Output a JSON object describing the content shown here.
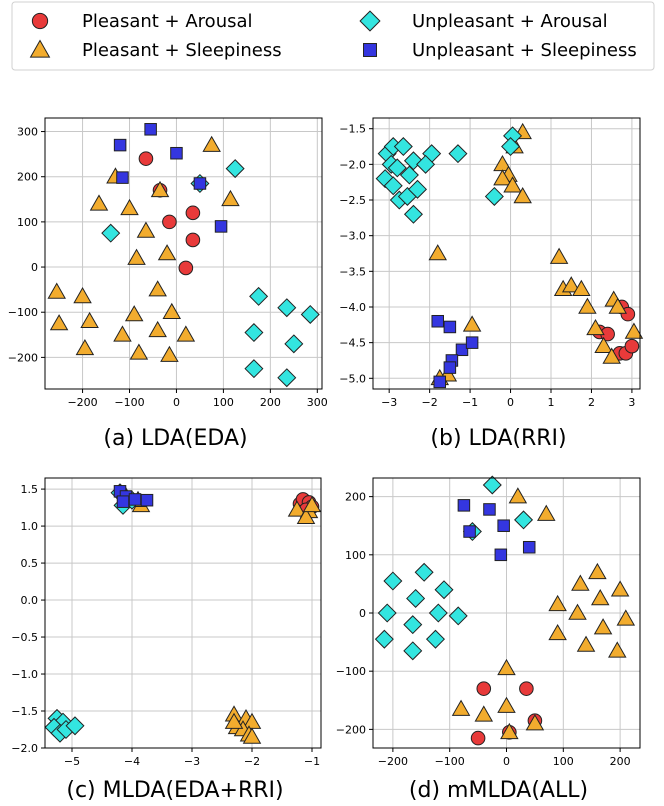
{
  "legend": {
    "entries": [
      {
        "label": "Pleasant + Arousal",
        "marker": "circle",
        "color": "#e83a3a"
      },
      {
        "label": "Unpleasant + Arousal",
        "marker": "diamond",
        "color": "#33e5e0"
      },
      {
        "label": "Pleasant + Sleepiness",
        "marker": "triangle",
        "color": "#f2ac2e"
      },
      {
        "label": "Unpleasant + Sleepiness",
        "marker": "square",
        "color": "#3436e0"
      }
    ]
  },
  "chart_data": [
    {
      "type": "scatter",
      "caption": "(a) LDA(EDA)",
      "xlim": [
        -280,
        310
      ],
      "ylim": [
        -270,
        330
      ],
      "xticks": [
        -200,
        -100,
        0,
        100,
        200,
        300
      ],
      "yticks": [
        -200,
        -100,
        0,
        100,
        200,
        300
      ],
      "grid": true,
      "series": [
        {
          "marker": "circle",
          "points": [
            [
              -65,
              240
            ],
            [
              -35,
              170
            ],
            [
              -15,
              100
            ],
            [
              35,
              120
            ],
            [
              35,
              60
            ],
            [
              20,
              -2
            ]
          ]
        },
        {
          "marker": "triangle",
          "points": [
            [
              -165,
              140
            ],
            [
              -130,
              200
            ],
            [
              -100,
              130
            ],
            [
              -65,
              80
            ],
            [
              -85,
              20
            ],
            [
              -20,
              30
            ],
            [
              -35,
              170
            ],
            [
              75,
              270
            ],
            [
              115,
              150
            ],
            [
              -255,
              -55
            ],
            [
              -200,
              -65
            ],
            [
              -250,
              -125
            ],
            [
              -185,
              -120
            ],
            [
              -90,
              -105
            ],
            [
              -10,
              -100
            ],
            [
              -115,
              -150
            ],
            [
              -40,
              -50
            ],
            [
              -40,
              -140
            ],
            [
              -80,
              -190
            ],
            [
              -195,
              -180
            ],
            [
              -15,
              -195
            ],
            [
              20,
              -150
            ]
          ]
        },
        {
          "marker": "diamond",
          "points": [
            [
              -140,
              75
            ],
            [
              50,
              185
            ],
            [
              125,
              218
            ],
            [
              175,
              -65
            ],
            [
              165,
              -145
            ],
            [
              235,
              -90
            ],
            [
              285,
              -105
            ],
            [
              250,
              -170
            ],
            [
              165,
              -225
            ],
            [
              235,
              -245
            ]
          ]
        },
        {
          "marker": "square",
          "points": [
            [
              -120,
              270
            ],
            [
              -115,
              198
            ],
            [
              -55,
              305
            ],
            [
              0,
              252
            ],
            [
              50,
              185
            ],
            [
              95,
              90
            ]
          ]
        }
      ]
    },
    {
      "type": "scatter",
      "caption": "(b) LDA(RRI)",
      "xlim": [
        -3.4,
        3.2
      ],
      "ylim": [
        -5.15,
        -1.35
      ],
      "xticks": [
        -3,
        -2,
        -1,
        0,
        1,
        2,
        3
      ],
      "yticks": [
        -5.0,
        -4.5,
        -4.0,
        -3.5,
        -3.0,
        -2.5,
        -2.0,
        -1.5
      ],
      "grid": true,
      "series": [
        {
          "marker": "circle",
          "points": [
            [
              2.2,
              -4.35
            ],
            [
              2.4,
              -4.38
            ],
            [
              2.7,
              -4.65
            ],
            [
              2.85,
              -4.65
            ],
            [
              2.75,
              -4.0
            ],
            [
              2.9,
              -4.1
            ],
            [
              3.0,
              -4.55
            ]
          ]
        },
        {
          "marker": "triangle",
          "points": [
            [
              0.3,
              -1.55
            ],
            [
              0.1,
              -1.75
            ],
            [
              -0.2,
              -2.0
            ],
            [
              -0.05,
              -2.15
            ],
            [
              -0.2,
              -2.2
            ],
            [
              0.05,
              -2.3
            ],
            [
              0.3,
              -2.45
            ],
            [
              -1.8,
              -3.25
            ],
            [
              1.2,
              -3.3
            ],
            [
              1.3,
              -3.75
            ],
            [
              1.5,
              -3.7
            ],
            [
              1.75,
              -3.75
            ],
            [
              1.9,
              -4.0
            ],
            [
              2.1,
              -4.3
            ],
            [
              2.55,
              -3.9
            ],
            [
              2.65,
              -4.0
            ],
            [
              2.3,
              -4.55
            ],
            [
              2.5,
              -4.7
            ],
            [
              3.05,
              -4.35
            ],
            [
              -0.95,
              -4.25
            ],
            [
              -1.55,
              -4.95
            ],
            [
              -1.75,
              -5.0
            ]
          ]
        },
        {
          "marker": "diamond",
          "points": [
            [
              -3.05,
              -1.85
            ],
            [
              -2.9,
              -1.75
            ],
            [
              -3.1,
              -2.2
            ],
            [
              -2.95,
              -2.0
            ],
            [
              -2.8,
              -2.05
            ],
            [
              -2.65,
              -1.75
            ],
            [
              -2.9,
              -2.3
            ],
            [
              -2.5,
              -2.15
            ],
            [
              -2.4,
              -1.95
            ],
            [
              -1.95,
              -1.85
            ],
            [
              -2.1,
              -2.0
            ],
            [
              -1.3,
              -1.85
            ],
            [
              -2.75,
              -2.5
            ],
            [
              -2.55,
              -2.45
            ],
            [
              -2.3,
              -2.35
            ],
            [
              -2.4,
              -2.7
            ],
            [
              -0.4,
              -2.45
            ],
            [
              0.05,
              -1.6
            ],
            [
              0.0,
              -1.75
            ]
          ]
        },
        {
          "marker": "square",
          "points": [
            [
              -1.8,
              -4.2
            ],
            [
              -1.5,
              -4.28
            ],
            [
              -1.2,
              -4.6
            ],
            [
              -0.95,
              -4.5
            ],
            [
              -1.45,
              -4.75
            ],
            [
              -1.5,
              -4.85
            ],
            [
              -1.75,
              -5.05
            ]
          ]
        }
      ]
    },
    {
      "type": "scatter",
      "caption": "(c) MLDA(EDA+RRI)",
      "xlim": [
        -5.45,
        -0.85
      ],
      "ylim": [
        -2.0,
        1.65
      ],
      "xticks": [
        -5,
        -4,
        -3,
        -2,
        -1
      ],
      "yticks": [
        -2.0,
        -1.5,
        -1.0,
        -0.5,
        0.0,
        0.5,
        1.0,
        1.5
      ],
      "grid": true,
      "series": [
        {
          "marker": "circle",
          "points": [
            [
              -1.2,
              1.3
            ],
            [
              -1.15,
              1.36
            ],
            [
              -1.05,
              1.32
            ],
            [
              -1.0,
              1.26
            ],
            [
              -1.1,
              1.22
            ]
          ]
        },
        {
          "marker": "triangle",
          "points": [
            [
              -1.25,
              1.22
            ],
            [
              -1.05,
              1.2
            ],
            [
              -1.1,
              1.12
            ],
            [
              -1.0,
              1.28
            ],
            [
              -3.85,
              1.28
            ],
            [
              -3.9,
              1.35
            ],
            [
              -4.1,
              1.4
            ],
            [
              -2.3,
              -1.55
            ],
            [
              -2.1,
              -1.6
            ],
            [
              -2.0,
              -1.65
            ],
            [
              -2.25,
              -1.72
            ],
            [
              -2.15,
              -1.75
            ],
            [
              -2.05,
              -1.82
            ],
            [
              -2.0,
              -1.85
            ],
            [
              -2.3,
              -1.65
            ]
          ]
        },
        {
          "marker": "diamond",
          "points": [
            [
              -4.2,
              1.45
            ],
            [
              -4.15,
              1.28
            ],
            [
              -4.0,
              1.35
            ],
            [
              -5.25,
              -1.6
            ],
            [
              -5.15,
              -1.65
            ],
            [
              -5.3,
              -1.72
            ],
            [
              -5.2,
              -1.8
            ],
            [
              -5.1,
              -1.75
            ],
            [
              -4.95,
              -1.7
            ]
          ]
        },
        {
          "marker": "square",
          "points": [
            [
              -4.2,
              1.47
            ],
            [
              -4.1,
              1.4
            ],
            [
              -3.95,
              1.36
            ],
            [
              -3.75,
              1.35
            ],
            [
              -4.15,
              1.33
            ]
          ]
        }
      ]
    },
    {
      "type": "scatter",
      "caption": "(d) mMLDA(ALL)",
      "xlim": [
        -235,
        235
      ],
      "ylim": [
        -232,
        232
      ],
      "xticks": [
        -200,
        -100,
        0,
        100,
        200
      ],
      "yticks": [
        -200,
        -100,
        0,
        100,
        200
      ],
      "grid": true,
      "series": [
        {
          "marker": "circle",
          "points": [
            [
              -40,
              -130
            ],
            [
              35,
              -130
            ],
            [
              -50,
              -215
            ],
            [
              5,
              -205
            ],
            [
              50,
              -185
            ]
          ]
        },
        {
          "marker": "triangle",
          "points": [
            [
              20,
              200
            ],
            [
              70,
              170
            ],
            [
              130,
              50
            ],
            [
              160,
              70
            ],
            [
              200,
              40
            ],
            [
              165,
              25
            ],
            [
              90,
              15
            ],
            [
              125,
              0
            ],
            [
              210,
              -10
            ],
            [
              170,
              -25
            ],
            [
              90,
              -35
            ],
            [
              140,
              -55
            ],
            [
              195,
              -65
            ],
            [
              0,
              -95
            ],
            [
              -80,
              -165
            ],
            [
              -40,
              -175
            ],
            [
              0,
              -160
            ],
            [
              50,
              -190
            ],
            [
              5,
              -205
            ]
          ]
        },
        {
          "marker": "diamond",
          "points": [
            [
              -25,
              220
            ],
            [
              30,
              160
            ],
            [
              -60,
              140
            ],
            [
              -200,
              55
            ],
            [
              -145,
              70
            ],
            [
              -210,
              0
            ],
            [
              -160,
              25
            ],
            [
              -110,
              40
            ],
            [
              -120,
              0
            ],
            [
              -85,
              -5
            ],
            [
              -165,
              -20
            ],
            [
              -215,
              -45
            ],
            [
              -125,
              -45
            ],
            [
              -165,
              -65
            ]
          ]
        },
        {
          "marker": "square",
          "points": [
            [
              -75,
              185
            ],
            [
              -30,
              178
            ],
            [
              -5,
              150
            ],
            [
              -65,
              140
            ],
            [
              -10,
              100
            ],
            [
              40,
              113
            ]
          ]
        }
      ]
    }
  ]
}
